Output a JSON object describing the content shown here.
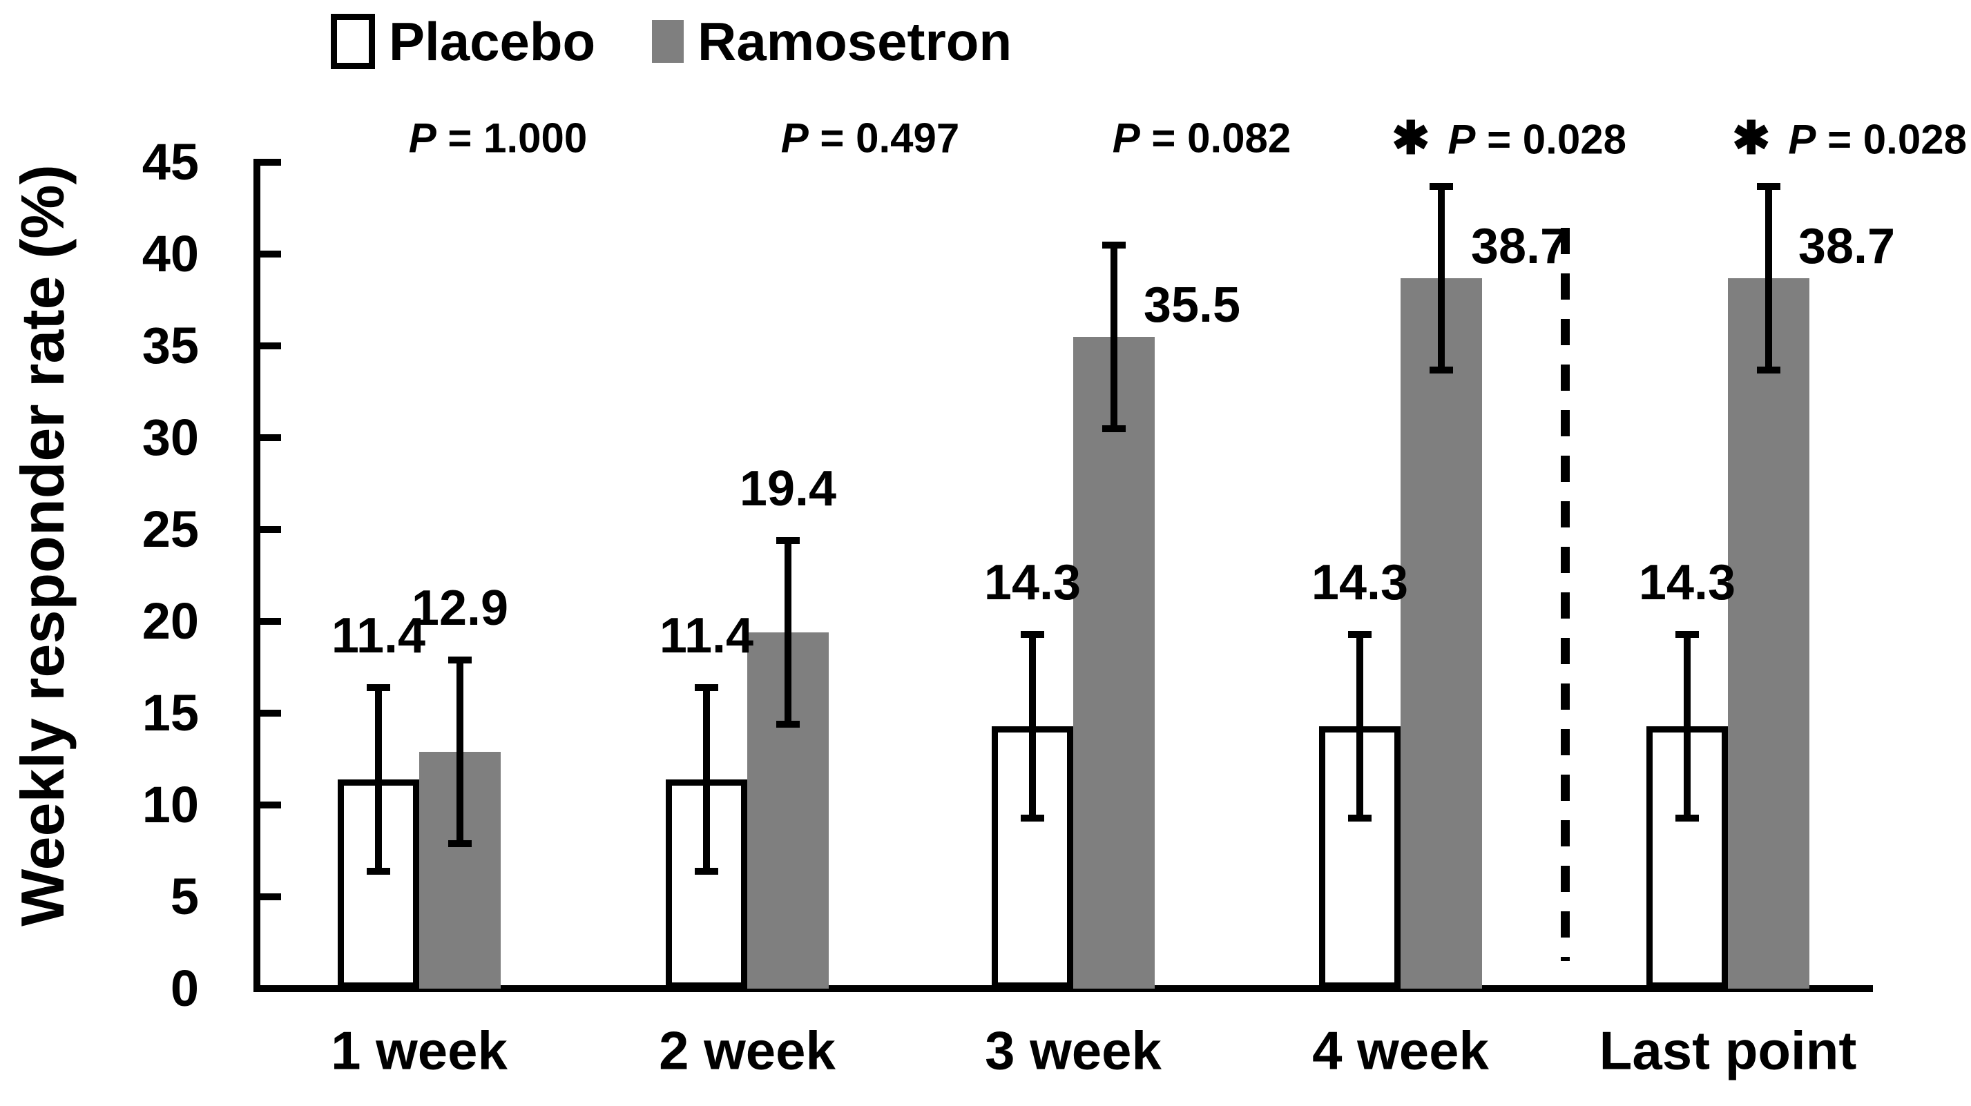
{
  "legend": {
    "items": [
      {
        "label": "Placebo"
      },
      {
        "label": "Ramosetron"
      }
    ]
  },
  "y_axis": {
    "title": "Weekly responder rate (%)",
    "ticks": [
      0,
      5,
      10,
      15,
      20,
      25,
      30,
      35,
      40,
      45
    ]
  },
  "chart_data": {
    "type": "bar",
    "title": "",
    "xlabel": "",
    "ylabel": "Weekly responder rate (%)",
    "ylim": [
      0,
      45
    ],
    "ytick_step": 5,
    "grid": false,
    "legend_position": "top-left",
    "categories": [
      "1 week",
      "2 week",
      "3 week",
      "4 week",
      "Last point"
    ],
    "series": [
      {
        "name": "Placebo",
        "fill": "#ffffff",
        "border_color": "#000000",
        "values": [
          11.4,
          11.4,
          14.3,
          14.3,
          14.3
        ],
        "error": [
          5.0,
          5.0,
          5.0,
          5.0,
          5.0
        ],
        "value_labels": [
          "11.4",
          "11.4",
          "14.3",
          "14.3",
          "14.3"
        ],
        "label_placement": [
          "above",
          "above",
          "above",
          "above",
          "above"
        ]
      },
      {
        "name": "Ramosetron",
        "fill": "#7f7f7f",
        "border_color": "#7f7f7f",
        "values": [
          12.9,
          19.4,
          35.5,
          38.7,
          38.7
        ],
        "error": [
          5.0,
          5.0,
          5.0,
          5.0,
          5.0
        ],
        "value_labels": [
          "12.9",
          "19.4",
          "35.5",
          "38.7",
          "38.7"
        ],
        "label_placement": [
          "above",
          "above",
          "right",
          "right",
          "right"
        ]
      }
    ],
    "p_values": [
      {
        "text": "P = 1.000",
        "significant": false
      },
      {
        "text": "P = 0.497",
        "significant": false
      },
      {
        "text": "P = 0.082",
        "significant": false
      },
      {
        "text": "P = 0.028",
        "significant": true
      },
      {
        "text": "P = 0.028",
        "significant": true
      }
    ],
    "significance_marker": "✱",
    "separator_after_category": "4 week"
  }
}
